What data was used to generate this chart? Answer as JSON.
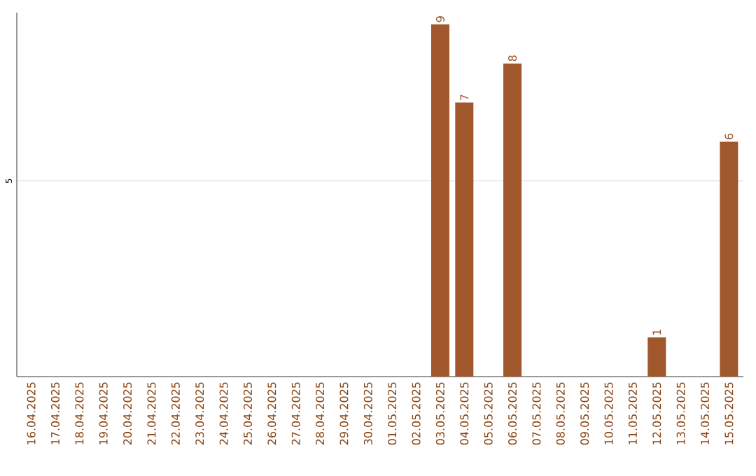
{
  "chart_data": {
    "type": "bar",
    "categories": [
      "16.04.2025",
      "17.04.2025",
      "18.04.2025",
      "19.04.2025",
      "20.04.2025",
      "21.04.2025",
      "22.04.2025",
      "23.04.2025",
      "24.04.2025",
      "25.04.2025",
      "26.04.2025",
      "27.04.2025",
      "28.04.2025",
      "29.04.2025",
      "30.04.2025",
      "01.05.2025",
      "02.05.2025",
      "03.05.2025",
      "04.05.2025",
      "05.05.2025",
      "06.05.2025",
      "07.05.2025",
      "08.05.2025",
      "09.05.2025",
      "10.05.2025",
      "11.05.2025",
      "12.05.2025",
      "13.05.2025",
      "14.05.2025",
      "15.05.2025"
    ],
    "values": [
      null,
      null,
      null,
      null,
      null,
      null,
      null,
      null,
      null,
      null,
      null,
      null,
      null,
      null,
      null,
      null,
      null,
      9,
      7,
      null,
      8,
      null,
      null,
      null,
      null,
      null,
      1,
      null,
      null,
      6
    ],
    "color": "#a0572b",
    "ylim": [
      0,
      9.3
    ],
    "yticks": [
      5
    ],
    "grid": "y",
    "data_labels": true
  }
}
